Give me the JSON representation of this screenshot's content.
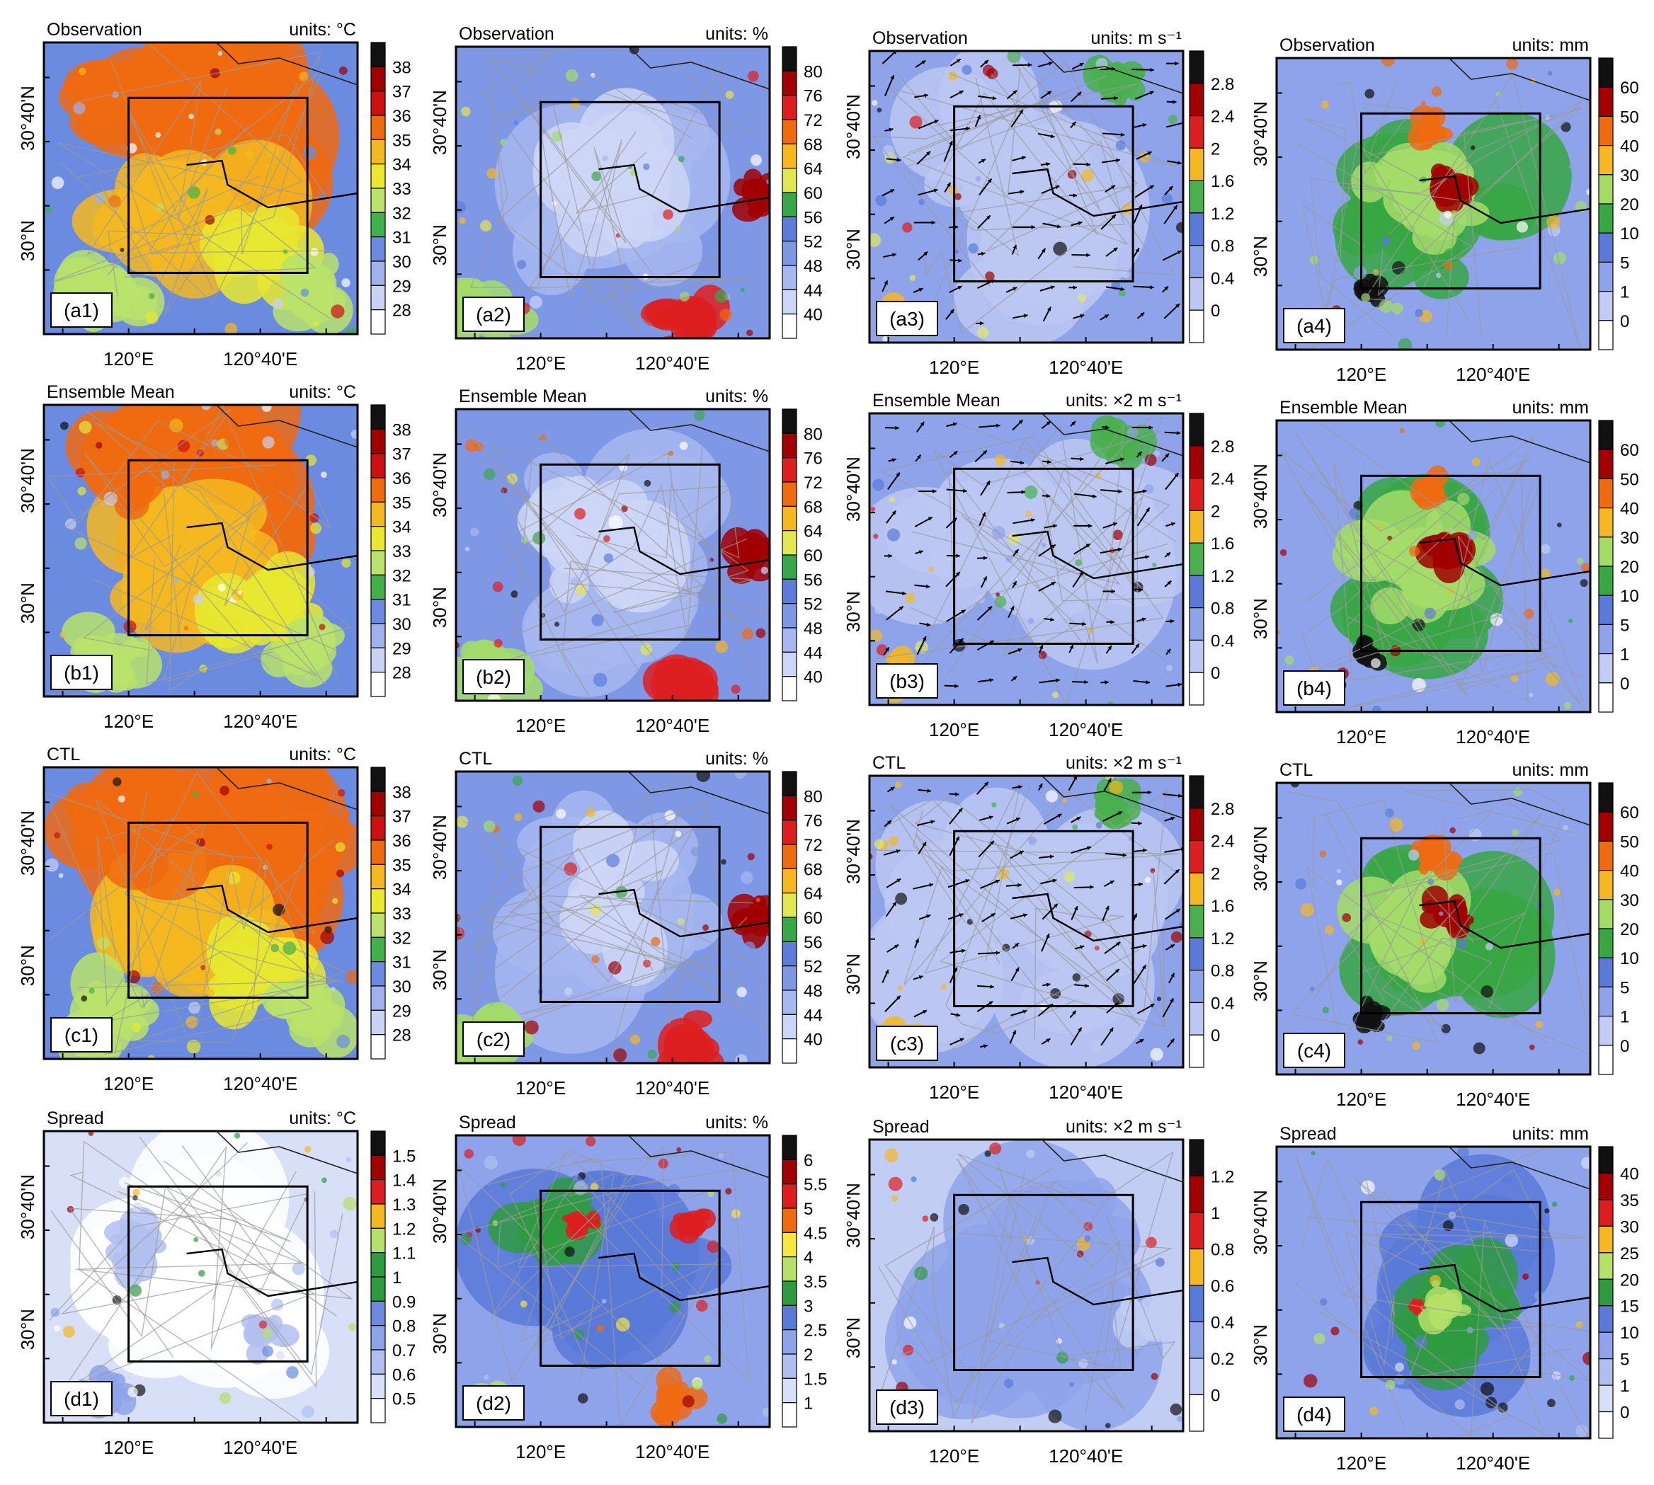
{
  "figure": {
    "rows": [
      {
        "row_title": "Observation"
      },
      {
        "row_title": "Ensemble Mean"
      },
      {
        "row_title": "CTL"
      },
      {
        "row_title": "Spread"
      }
    ],
    "panels": [
      {
        "id": "a1",
        "title": "Observation",
        "units": "units: °C",
        "colorbar": [
          "38",
          "37",
          "36",
          "35",
          "34",
          "33",
          "32",
          "31",
          "30",
          "29",
          "28"
        ],
        "palette": "temp"
      },
      {
        "id": "a2",
        "title": "Observation",
        "units": "units: %",
        "colorbar": [
          "80",
          "76",
          "72",
          "68",
          "64",
          "60",
          "56",
          "52",
          "48",
          "44",
          "40"
        ],
        "palette": "hum"
      },
      {
        "id": "a3",
        "title": "Observation",
        "units": "units: m s⁻¹",
        "colorbar": [
          "2.8",
          "2.4",
          "2",
          "1.6",
          "1.2",
          "0.8",
          "0.4",
          "0"
        ],
        "palette": "wind",
        "vectors": true
      },
      {
        "id": "a4",
        "title": "Observation",
        "units": "units: mm",
        "colorbar": [
          "60",
          "50",
          "40",
          "30",
          "20",
          "10",
          "5",
          "1",
          "0"
        ],
        "palette": "rain"
      },
      {
        "id": "b1",
        "title": "Ensemble Mean",
        "units": "units: °C",
        "colorbar": [
          "38",
          "37",
          "36",
          "35",
          "34",
          "33",
          "32",
          "31",
          "30",
          "29",
          "28"
        ],
        "palette": "temp"
      },
      {
        "id": "b2",
        "title": "Ensemble Mean",
        "units": "units: %",
        "colorbar": [
          "80",
          "76",
          "72",
          "68",
          "64",
          "60",
          "56",
          "52",
          "48",
          "44",
          "40"
        ],
        "palette": "hum"
      },
      {
        "id": "b3",
        "title": "Ensemble Mean",
        "units": "units: ×2 m s⁻¹",
        "colorbar": [
          "2.8",
          "2.4",
          "2",
          "1.6",
          "1.2",
          "0.8",
          "0.4",
          "0"
        ],
        "palette": "wind",
        "vectors": true
      },
      {
        "id": "b4",
        "title": "Ensemble Mean",
        "units": "units: mm",
        "colorbar": [
          "60",
          "50",
          "40",
          "30",
          "20",
          "10",
          "5",
          "1",
          "0"
        ],
        "palette": "rain"
      },
      {
        "id": "c1",
        "title": "CTL",
        "units": "units: °C",
        "colorbar": [
          "38",
          "37",
          "36",
          "35",
          "34",
          "33",
          "32",
          "31",
          "30",
          "29",
          "28"
        ],
        "palette": "temp"
      },
      {
        "id": "c2",
        "title": "CTL",
        "units": "units: %",
        "colorbar": [
          "80",
          "76",
          "72",
          "68",
          "64",
          "60",
          "56",
          "52",
          "48",
          "44",
          "40"
        ],
        "palette": "hum"
      },
      {
        "id": "c3",
        "title": "CTL",
        "units": "units: ×2 m s⁻¹",
        "colorbar": [
          "2.8",
          "2.4",
          "2",
          "1.6",
          "1.2",
          "0.8",
          "0.4",
          "0"
        ],
        "palette": "wind",
        "vectors": true
      },
      {
        "id": "c4",
        "title": "CTL",
        "units": "units: mm",
        "colorbar": [
          "60",
          "50",
          "40",
          "30",
          "20",
          "10",
          "5",
          "1",
          "0"
        ],
        "palette": "rain"
      },
      {
        "id": "d1",
        "title": "Spread",
        "units": "units: °C",
        "colorbar": [
          "1.5",
          "1.4",
          "1.3",
          "1.2",
          "1.1",
          "1",
          "0.9",
          "0.8",
          "0.7",
          "0.6",
          "0.5"
        ],
        "palette": "sp1"
      },
      {
        "id": "d2",
        "title": "Spread",
        "units": "units: %",
        "colorbar": [
          "6",
          "5.5",
          "5",
          "4.5",
          "4",
          "3.5",
          "3",
          "2.5",
          "2",
          "1.5",
          "1"
        ],
        "palette": "sp2"
      },
      {
        "id": "d3",
        "title": "Spread",
        "units": "units: ×2 m s⁻¹",
        "colorbar": [
          "1.2",
          "1",
          "0.8",
          "0.6",
          "0.4",
          "0.2",
          "0"
        ],
        "palette": "sp3"
      },
      {
        "id": "d4",
        "title": "Spread",
        "units": "units: mm",
        "colorbar": [
          "40",
          "35",
          "30",
          "25",
          "20",
          "15",
          "10",
          "5",
          "1",
          "0"
        ],
        "palette": "sp4"
      }
    ],
    "axes": {
      "x_ticks": [
        "120°E",
        "120°40'E"
      ],
      "y_ticks": [
        "30°40'N",
        "30°N"
      ]
    },
    "palettes": {
      "temp": [
        "#111111",
        "#a00000",
        "#cc1111",
        "#f06a10",
        "#f5b820",
        "#e8e830",
        "#b9e36a",
        "#3fb24a",
        "#6a8be0",
        "#9fb2ee",
        "#c9d2f4",
        "#ffffff"
      ],
      "hum": [
        "#111111",
        "#a00000",
        "#dd1e1e",
        "#f06a10",
        "#f5b820",
        "#e2e650",
        "#a3dc6a",
        "#3aa64a",
        "#5d7ddc",
        "#7f98e6",
        "#a7b7ef",
        "#ccd6f6",
        "#ffffff"
      ],
      "wind": [
        "#111111",
        "#a00000",
        "#dd1e1e",
        "#f5b820",
        "#dfe862",
        "#49b04e",
        "#5a7ad8",
        "#8ea3ea",
        "#bcc8f2",
        "#ffffff"
      ],
      "rain": [
        "#111111",
        "#a00000",
        "#f06a10",
        "#f5b820",
        "#a4dc6a",
        "#37a643",
        "#5a7ad8",
        "#8ea3ea",
        "#c2cdf3",
        "#ffffff"
      ],
      "sp1": [
        "#111111",
        "#a00000",
        "#dd1e1e",
        "#f5b820",
        "#b5e06a",
        "#2f9b41",
        "#6a8be0",
        "#8ea3ea",
        "#b1bff0",
        "#d8e0f8",
        "#ffffff"
      ],
      "sp2": [
        "#111111",
        "#a00000",
        "#dd1e1e",
        "#f06a10",
        "#f5e640",
        "#b5e06a",
        "#2f9b41",
        "#5a7ad8",
        "#8ea3ea",
        "#b1bff0",
        "#d8e0f8",
        "#ffffff"
      ],
      "sp3": [
        "#111111",
        "#a00000",
        "#dd1e1e",
        "#f5b820",
        "#2f9b41",
        "#5a7ad8",
        "#8ea3ea",
        "#c2cdf3",
        "#ffffff"
      ],
      "sp4": [
        "#111111",
        "#a00000",
        "#dd1e1e",
        "#f5b820",
        "#b5e06a",
        "#2f9b41",
        "#5a7ad8",
        "#8ea3ea",
        "#b1bff0",
        "#d8e0f8",
        "#ffffff"
      ]
    }
  }
}
